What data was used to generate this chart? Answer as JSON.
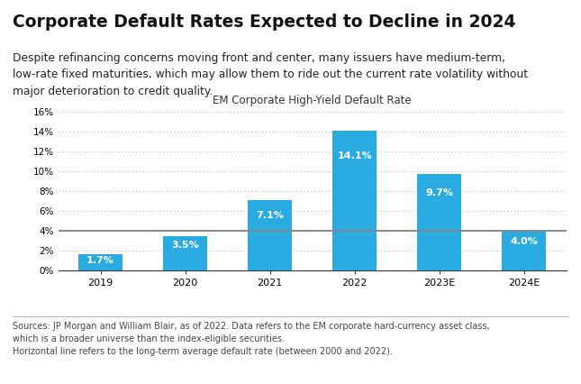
{
  "title": "Corporate Default Rates Expected to Decline in 2024",
  "subtitle": "Despite refinancing concerns moving front and center, many issuers have medium-term,\nlow-rate fixed maturities, which may allow them to ride out the current rate volatility without\nmajor deterioration to credit quality.",
  "chart_title": "EM Corporate High-Yield Default Rate",
  "categories": [
    "2019",
    "2020",
    "2021",
    "2022",
    "2023E",
    "2024E"
  ],
  "values": [
    1.7,
    3.5,
    7.1,
    14.1,
    9.7,
    4.0
  ],
  "bar_color": "#29ABE2",
  "hline_value": 4.0,
  "hline_color": "#888888",
  "ylim": [
    0,
    16
  ],
  "yticks": [
    0,
    2,
    4,
    6,
    8,
    10,
    12,
    14,
    16
  ],
  "ytick_labels": [
    "0%",
    "2%",
    "4%",
    "6%",
    "8%",
    "10%",
    "12%",
    "14%",
    "16%"
  ],
  "grid_color": "#aaaaaa",
  "bg_color": "#ffffff",
  "value_label_color": "#ffffff",
  "footer": "Sources: JP Morgan and William Blair, as of 2022. Data refers to the EM corporate hard-currency asset class,\nwhich is a broader universe than the index-eligible securities.\nHorizontal line refers to the long-term average default rate (between 2000 and 2022).",
  "title_fontsize": 13.5,
  "subtitle_fontsize": 8.8,
  "chart_title_fontsize": 8.5,
  "bar_label_fontsize": 8.0,
  "tick_fontsize": 7.5,
  "footer_fontsize": 7.0
}
